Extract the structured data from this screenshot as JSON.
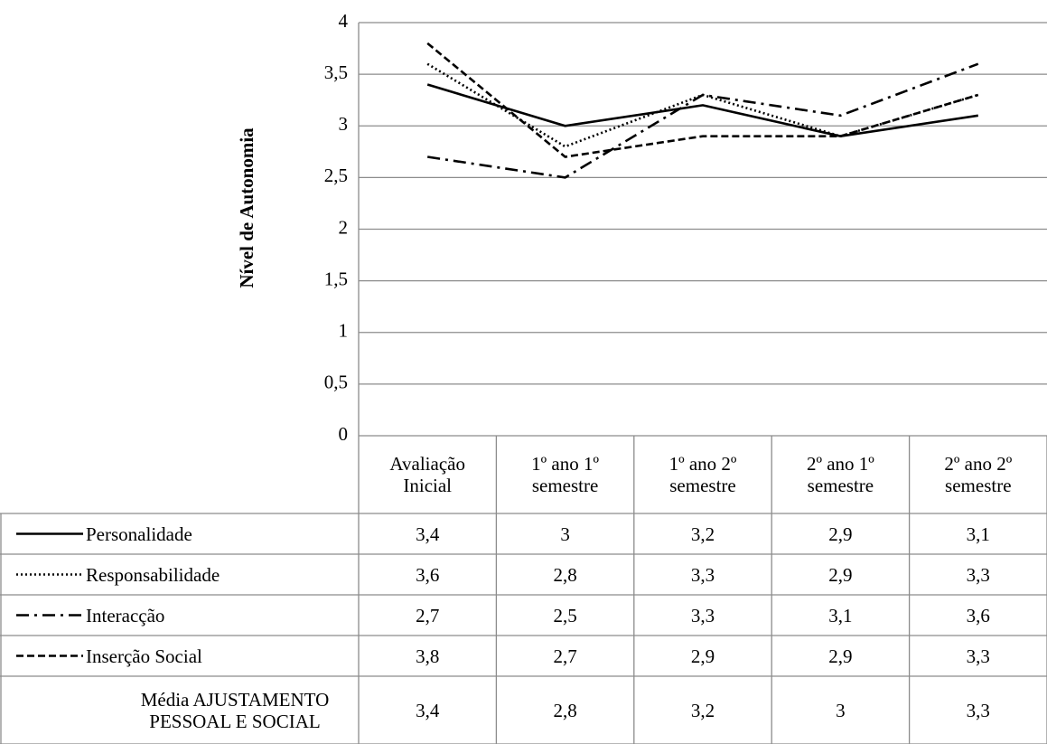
{
  "chart_data": {
    "type": "line",
    "y_axis_label": "Nível de Autonomia",
    "categories": [
      "Avaliação Inicial",
      "1º ano 1º semestre",
      "1º ano 2º semestre",
      "2º ano 1º semestre",
      "2º ano 2º semestre"
    ],
    "ylim": [
      0,
      4
    ],
    "yticks": [
      0,
      {
        "value": 0.5,
        "label": "0,5"
      },
      1,
      {
        "value": 1.5,
        "label": "1,5"
      },
      2,
      {
        "value": 2.5,
        "label": "2,5"
      },
      3,
      {
        "value": 3.5,
        "label": "3,5"
      },
      4
    ],
    "grid": true,
    "data_table": true,
    "series": [
      {
        "name": "Personalidade",
        "color": "#000000",
        "style": "solid",
        "values": [
          3.4,
          3,
          3.2,
          2.9,
          3.1
        ],
        "value_labels": [
          "3,4",
          "3",
          "3,2",
          "2,9",
          "3,1"
        ]
      },
      {
        "name": "Responsabilidade",
        "color": "#000000",
        "style": "dotted",
        "values": [
          3.6,
          2.8,
          3.3,
          2.9,
          3.3
        ],
        "value_labels": [
          "3,6",
          "2,8",
          "3,3",
          "2,9",
          "3,3"
        ]
      },
      {
        "name": "Interacção",
        "color": "#000000",
        "style": "dashdot",
        "values": [
          2.7,
          2.5,
          3.3,
          3.1,
          3.6
        ],
        "value_labels": [
          "2,7",
          "2,5",
          "3,3",
          "3,1",
          "3,6"
        ]
      },
      {
        "name": "Inserção Social",
        "color": "#000000",
        "style": "dashed",
        "values": [
          3.8,
          2.7,
          2.9,
          2.9,
          3.3
        ],
        "value_labels": [
          "3,8",
          "2,7",
          "2,9",
          "2,9",
          "3,3"
        ]
      },
      {
        "name": "Média AJUSTAMENTO PESSOAL E SOCIAL",
        "color": "#000000",
        "style": "none",
        "values": [
          3.4,
          2.8,
          3.2,
          3,
          3.3
        ],
        "value_labels": [
          "3,4",
          "2,8",
          "3,2",
          "3",
          "3,3"
        ]
      }
    ]
  }
}
